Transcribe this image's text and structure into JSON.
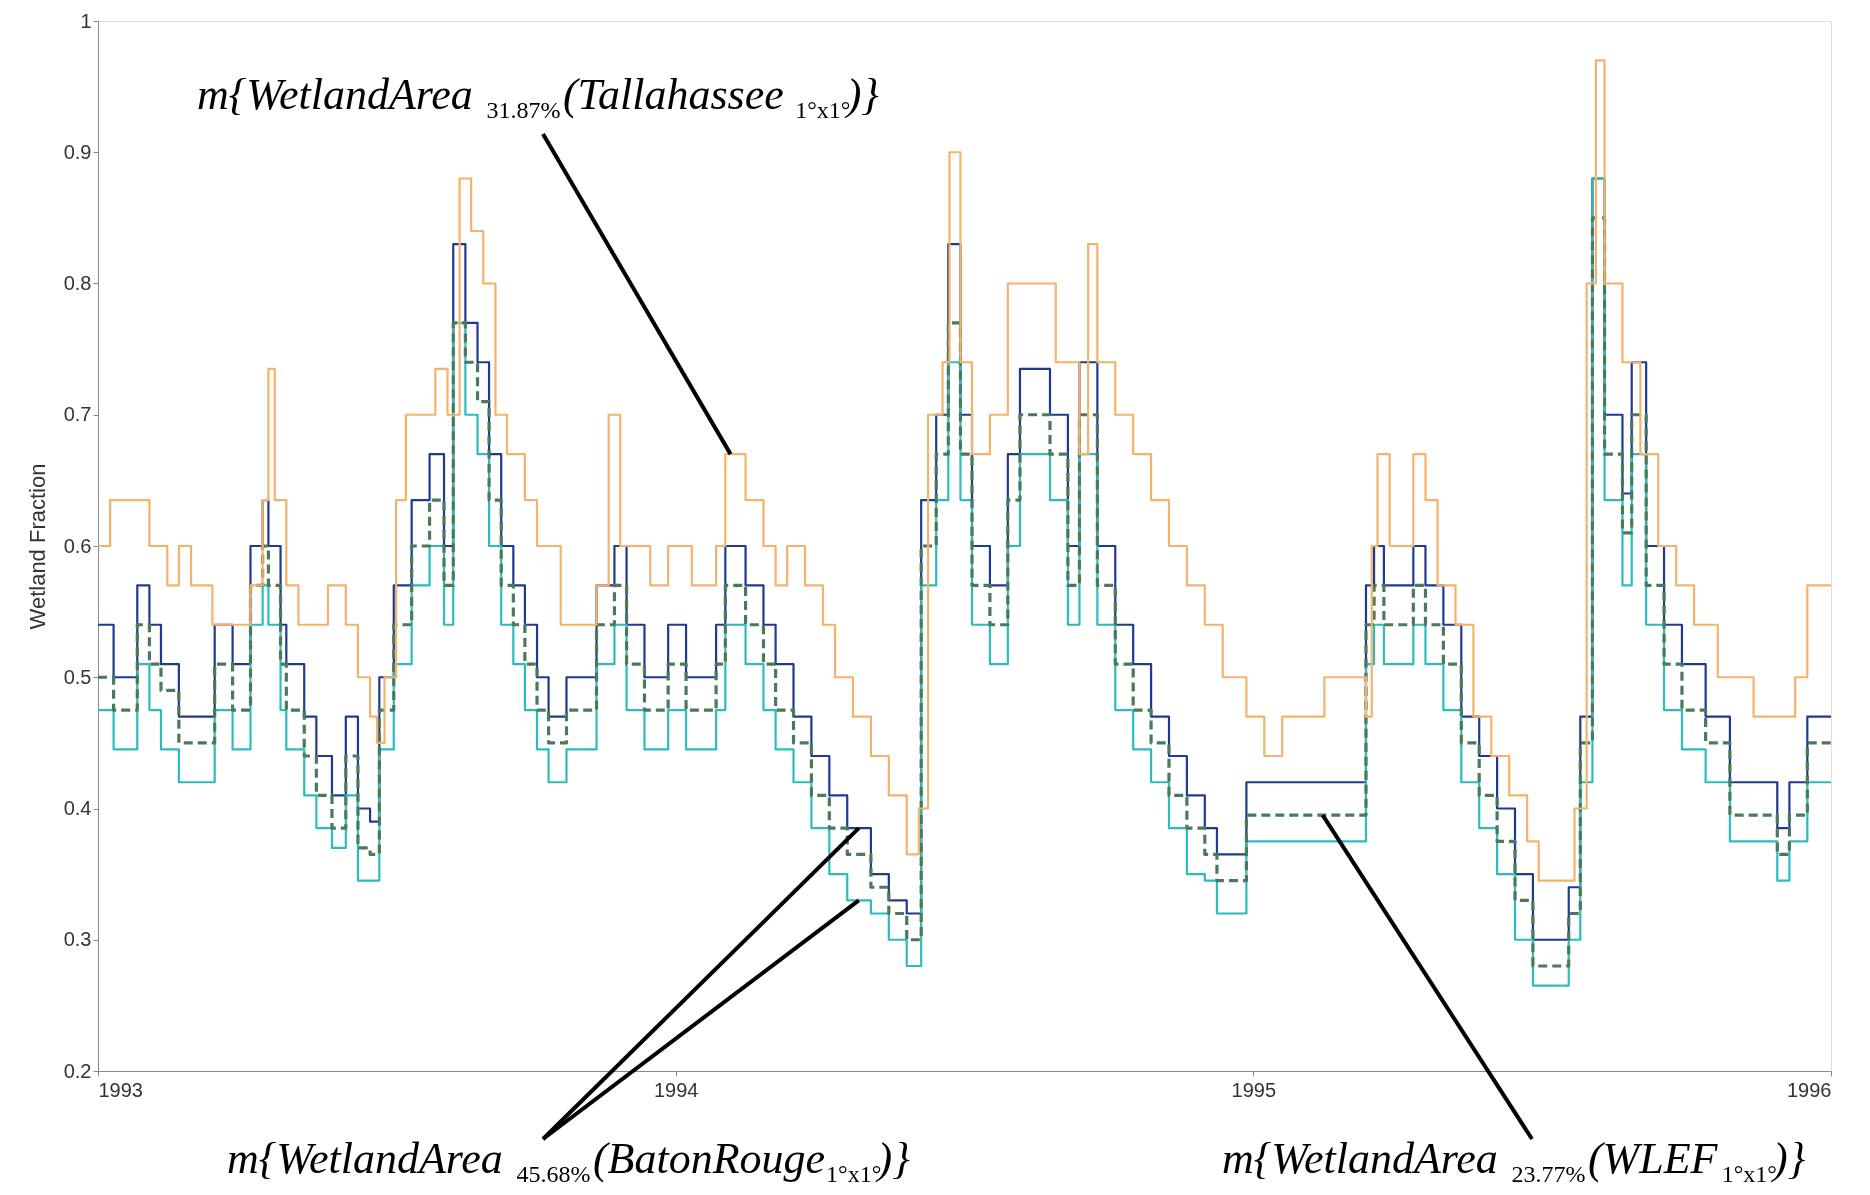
{
  "chart_data": {
    "type": "step",
    "ylabel": "Wetland Fraction",
    "xlim": [
      1993,
      1996
    ],
    "xticks": [
      1993,
      1994,
      1995,
      1996
    ],
    "ylim": [
      0.2,
      1
    ],
    "yticks": [
      0.2,
      0.3,
      0.4,
      0.5,
      0.6,
      0.7,
      0.8,
      0.9,
      1
    ],
    "grid": false,
    "series": [
      {
        "color": "#f5b26b",
        "line_style": "solid",
        "x": [
          1993.0,
          1993.021,
          1993.089,
          1993.12,
          1993.14,
          1993.161,
          1993.198,
          1993.264,
          1993.285,
          1993.295,
          1993.306,
          1993.326,
          1993.347,
          1993.398,
          1993.429,
          1993.45,
          1993.471,
          1993.483,
          1993.496,
          1993.516,
          1993.533,
          1993.584,
          1993.605,
          1993.626,
          1993.646,
          1993.667,
          1993.688,
          1993.708,
          1993.739,
          1993.76,
          1993.801,
          1993.863,
          1993.884,
          1993.904,
          1993.956,
          1993.987,
          1994.028,
          1994.07,
          1994.086,
          1994.121,
          1994.152,
          1994.173,
          1994.193,
          1994.224,
          1994.255,
          1994.276,
          1994.307,
          1994.338,
          1994.369,
          1994.4,
          1994.421,
          1994.437,
          1994.462,
          1994.474,
          1994.493,
          1994.513,
          1994.544,
          1994.575,
          1994.658,
          1994.699,
          1994.714,
          1994.73,
          1994.761,
          1994.792,
          1994.823,
          1994.854,
          1994.885,
          1994.916,
          1994.947,
          1994.988,
          1995.019,
          1995.05,
          1995.123,
          1995.195,
          1995.205,
          1995.215,
          1995.236,
          1995.277,
          1995.298,
          1995.319,
          1995.35,
          1995.381,
          1995.412,
          1995.443,
          1995.474,
          1995.494,
          1995.556,
          1995.577,
          1995.593,
          1995.608,
          1995.639,
          1995.67,
          1995.701,
          1995.732,
          1995.763,
          1995.804,
          1995.866,
          1995.907,
          1995.938,
          1995.959,
          1996.0
        ],
        "values": [
          0.6,
          0.635,
          0.6,
          0.57,
          0.6,
          0.57,
          0.54,
          0.57,
          0.635,
          0.735,
          0.635,
          0.57,
          0.54,
          0.57,
          0.54,
          0.5,
          0.47,
          0.45,
          0.5,
          0.635,
          0.7,
          0.735,
          0.7,
          0.88,
          0.84,
          0.8,
          0.7,
          0.67,
          0.635,
          0.6,
          0.54,
          0.57,
          0.7,
          0.6,
          0.57,
          0.6,
          0.57,
          0.6,
          0.67,
          0.635,
          0.6,
          0.57,
          0.6,
          0.57,
          0.54,
          0.5,
          0.47,
          0.44,
          0.41,
          0.365,
          0.4,
          0.7,
          0.74,
          0.9,
          0.74,
          0.67,
          0.7,
          0.8,
          0.74,
          0.67,
          0.83,
          0.74,
          0.7,
          0.67,
          0.635,
          0.6,
          0.57,
          0.54,
          0.5,
          0.47,
          0.44,
          0.47,
          0.5,
          0.47,
          0.6,
          0.67,
          0.6,
          0.67,
          0.635,
          0.57,
          0.54,
          0.47,
          0.44,
          0.41,
          0.375,
          0.345,
          0.4,
          0.8,
          0.97,
          0.8,
          0.74,
          0.67,
          0.6,
          0.57,
          0.54,
          0.5,
          0.47,
          0.47,
          0.5,
          0.57,
          0.57
        ]
      },
      {
        "color": "#1f3a93",
        "line_style": "solid",
        "x": [
          1993.0,
          1993.027,
          1993.068,
          1993.089,
          1993.109,
          1993.14,
          1993.182,
          1993.202,
          1993.233,
          1993.264,
          1993.285,
          1993.295,
          1993.316,
          1993.326,
          1993.357,
          1993.378,
          1993.405,
          1993.429,
          1993.45,
          1993.471,
          1993.487,
          1993.512,
          1993.543,
          1993.574,
          1993.599,
          1993.615,
          1993.636,
          1993.657,
          1993.677,
          1993.698,
          1993.719,
          1993.739,
          1993.76,
          1993.78,
          1993.811,
          1993.863,
          1993.894,
          1993.915,
          1993.946,
          1993.987,
          1994.018,
          1994.07,
          1994.086,
          1994.121,
          1994.152,
          1994.173,
          1994.204,
          1994.235,
          1994.266,
          1994.297,
          1994.338,
          1994.369,
          1994.4,
          1994.425,
          1994.451,
          1994.472,
          1994.493,
          1994.513,
          1994.544,
          1994.575,
          1994.596,
          1994.648,
          1994.679,
          1994.699,
          1994.73,
          1994.761,
          1994.792,
          1994.823,
          1994.854,
          1994.885,
          1994.916,
          1994.937,
          1994.988,
          1995.05,
          1995.174,
          1995.195,
          1995.209,
          1995.226,
          1995.277,
          1995.298,
          1995.329,
          1995.36,
          1995.391,
          1995.422,
          1995.453,
          1995.484,
          1995.546,
          1995.566,
          1995.587,
          1995.608,
          1995.639,
          1995.655,
          1995.68,
          1995.711,
          1995.742,
          1995.783,
          1995.825,
          1995.876,
          1995.907,
          1995.928,
          1995.959,
          1996.0
        ],
        "values": [
          0.54,
          0.5,
          0.57,
          0.54,
          0.51,
          0.47,
          0.47,
          0.54,
          0.51,
          0.6,
          0.635,
          0.6,
          0.54,
          0.51,
          0.47,
          0.44,
          0.41,
          0.47,
          0.4,
          0.39,
          0.5,
          0.57,
          0.635,
          0.67,
          0.6,
          0.83,
          0.77,
          0.74,
          0.67,
          0.6,
          0.57,
          0.54,
          0.5,
          0.47,
          0.5,
          0.57,
          0.6,
          0.54,
          0.5,
          0.54,
          0.5,
          0.54,
          0.6,
          0.57,
          0.54,
          0.51,
          0.47,
          0.44,
          0.41,
          0.385,
          0.35,
          0.33,
          0.32,
          0.635,
          0.7,
          0.83,
          0.7,
          0.6,
          0.57,
          0.67,
          0.735,
          0.7,
          0.6,
          0.74,
          0.6,
          0.54,
          0.51,
          0.47,
          0.44,
          0.41,
          0.385,
          0.365,
          0.42,
          0.42,
          0.42,
          0.57,
          0.6,
          0.57,
          0.6,
          0.57,
          0.54,
          0.47,
          0.44,
          0.4,
          0.35,
          0.3,
          0.34,
          0.47,
          0.88,
          0.7,
          0.64,
          0.74,
          0.6,
          0.54,
          0.51,
          0.47,
          0.42,
          0.42,
          0.385,
          0.42,
          0.47,
          0.47
        ]
      },
      {
        "color": "#2bbcc0",
        "line_style": "solid",
        "x": [
          1993.0,
          1993.027,
          1993.068,
          1993.089,
          1993.109,
          1993.14,
          1993.182,
          1993.202,
          1993.233,
          1993.264,
          1993.285,
          1993.295,
          1993.316,
          1993.326,
          1993.357,
          1993.378,
          1993.405,
          1993.429,
          1993.45,
          1993.471,
          1993.487,
          1993.512,
          1993.543,
          1993.574,
          1993.599,
          1993.615,
          1993.636,
          1993.657,
          1993.677,
          1993.698,
          1993.719,
          1993.739,
          1993.76,
          1993.78,
          1993.811,
          1993.863,
          1993.894,
          1993.915,
          1993.946,
          1993.987,
          1994.018,
          1994.07,
          1994.086,
          1994.121,
          1994.152,
          1994.173,
          1994.204,
          1994.235,
          1994.266,
          1994.297,
          1994.338,
          1994.369,
          1994.4,
          1994.425,
          1994.451,
          1994.472,
          1994.493,
          1994.513,
          1994.544,
          1994.575,
          1994.596,
          1994.648,
          1994.679,
          1994.699,
          1994.73,
          1994.761,
          1994.792,
          1994.823,
          1994.854,
          1994.885,
          1994.916,
          1994.937,
          1994.988,
          1995.05,
          1995.174,
          1995.195,
          1995.209,
          1995.226,
          1995.277,
          1995.298,
          1995.329,
          1995.36,
          1995.391,
          1995.422,
          1995.453,
          1995.484,
          1995.546,
          1995.566,
          1995.587,
          1995.608,
          1995.639,
          1995.655,
          1995.68,
          1995.711,
          1995.742,
          1995.783,
          1995.825,
          1995.876,
          1995.907,
          1995.928,
          1995.959,
          1996.0
        ],
        "values": [
          0.475,
          0.445,
          0.51,
          0.475,
          0.445,
          0.42,
          0.42,
          0.475,
          0.445,
          0.54,
          0.57,
          0.54,
          0.475,
          0.445,
          0.41,
          0.385,
          0.37,
          0.41,
          0.345,
          0.345,
          0.445,
          0.51,
          0.57,
          0.6,
          0.54,
          0.77,
          0.7,
          0.67,
          0.6,
          0.54,
          0.51,
          0.475,
          0.445,
          0.42,
          0.445,
          0.51,
          0.54,
          0.475,
          0.445,
          0.475,
          0.445,
          0.475,
          0.54,
          0.51,
          0.475,
          0.445,
          0.42,
          0.385,
          0.35,
          0.33,
          0.32,
          0.3,
          0.28,
          0.57,
          0.635,
          0.74,
          0.635,
          0.54,
          0.51,
          0.6,
          0.67,
          0.635,
          0.54,
          0.67,
          0.54,
          0.475,
          0.445,
          0.42,
          0.385,
          0.35,
          0.345,
          0.32,
          0.375,
          0.375,
          0.375,
          0.51,
          0.54,
          0.51,
          0.54,
          0.51,
          0.475,
          0.42,
          0.385,
          0.35,
          0.3,
          0.265,
          0.3,
          0.42,
          0.88,
          0.635,
          0.57,
          0.67,
          0.54,
          0.475,
          0.445,
          0.42,
          0.375,
          0.375,
          0.345,
          0.375,
          0.42,
          0.42
        ]
      },
      {
        "color": "#4a7a5a",
        "line_style": "dashed",
        "x": [
          1993.0,
          1993.027,
          1993.068,
          1993.089,
          1993.109,
          1993.14,
          1993.182,
          1993.202,
          1993.233,
          1993.264,
          1993.285,
          1993.295,
          1993.316,
          1993.326,
          1993.357,
          1993.378,
          1993.405,
          1993.429,
          1993.45,
          1993.471,
          1993.487,
          1993.512,
          1993.543,
          1993.574,
          1993.599,
          1993.615,
          1993.636,
          1993.657,
          1993.677,
          1993.698,
          1993.719,
          1993.739,
          1993.76,
          1993.78,
          1993.811,
          1993.863,
          1993.894,
          1993.915,
          1993.946,
          1993.987,
          1994.018,
          1994.07,
          1994.086,
          1994.121,
          1994.152,
          1994.173,
          1994.204,
          1994.235,
          1994.266,
          1994.297,
          1994.338,
          1994.369,
          1994.4,
          1994.425,
          1994.451,
          1994.472,
          1994.493,
          1994.513,
          1994.544,
          1994.575,
          1994.596,
          1994.648,
          1994.679,
          1994.699,
          1994.73,
          1994.761,
          1994.792,
          1994.823,
          1994.854,
          1994.885,
          1994.916,
          1994.937,
          1994.988,
          1995.05,
          1995.174,
          1995.195,
          1995.209,
          1995.226,
          1995.277,
          1995.298,
          1995.329,
          1995.36,
          1995.391,
          1995.422,
          1995.453,
          1995.484,
          1995.546,
          1995.566,
          1995.587,
          1995.608,
          1995.639,
          1995.655,
          1995.68,
          1995.711,
          1995.742,
          1995.783,
          1995.825,
          1995.876,
          1995.907,
          1995.928,
          1995.959,
          1996.0
        ],
        "values": [
          0.5,
          0.475,
          0.54,
          0.51,
          0.49,
          0.45,
          0.45,
          0.51,
          0.475,
          0.57,
          0.6,
          0.57,
          0.51,
          0.475,
          0.44,
          0.41,
          0.385,
          0.44,
          0.37,
          0.365,
          0.475,
          0.54,
          0.6,
          0.635,
          0.57,
          0.77,
          0.74,
          0.71,
          0.635,
          0.57,
          0.54,
          0.51,
          0.475,
          0.45,
          0.475,
          0.54,
          0.57,
          0.51,
          0.475,
          0.51,
          0.475,
          0.51,
          0.57,
          0.54,
          0.51,
          0.475,
          0.45,
          0.41,
          0.385,
          0.365,
          0.34,
          0.32,
          0.3,
          0.6,
          0.67,
          0.77,
          0.67,
          0.57,
          0.54,
          0.635,
          0.7,
          0.67,
          0.57,
          0.7,
          0.57,
          0.51,
          0.475,
          0.45,
          0.41,
          0.385,
          0.365,
          0.345,
          0.395,
          0.395,
          0.395,
          0.54,
          0.57,
          0.54,
          0.57,
          0.54,
          0.51,
          0.45,
          0.41,
          0.375,
          0.33,
          0.28,
          0.32,
          0.45,
          0.85,
          0.67,
          0.61,
          0.7,
          0.57,
          0.51,
          0.475,
          0.45,
          0.395,
          0.395,
          0.365,
          0.395,
          0.45,
          0.45
        ]
      }
    ],
    "annotations": [
      {
        "text": "m{WetlandArea$_{31.87%}$(Tallahassee$_{1°x1°}$)}",
        "x": 1994.095,
        "y": 0.67
      },
      {
        "text": "m{WetlandArea$_{45.68%}$(BatonRouge$_{1°x1°}$)}",
        "x": 1994.317,
        "y": 0.385
      },
      {
        "text": "m{WetlandArea$_{23.77%}$(WLEF$_{1°x1°}$)}",
        "x": 1995.12,
        "y": 0.395
      }
    ]
  }
}
